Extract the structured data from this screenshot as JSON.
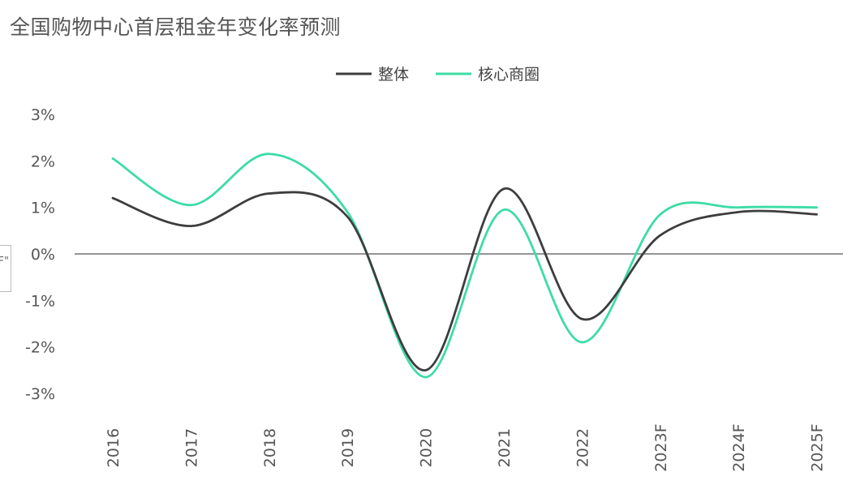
{
  "title": "全国购物中心首层租金年变化率预测",
  "side_tag": "F\"",
  "colors": {
    "overall": "#3d3d3d",
    "core": "#3ddca4",
    "axis": "#555555"
  },
  "chart_data": {
    "type": "line",
    "title": "全国购物中心首层租金年变化率预测",
    "categories": [
      "2016",
      "2017",
      "2018",
      "2019",
      "2020",
      "2021",
      "2022",
      "2023F",
      "2024F",
      "2025F"
    ],
    "yticks": [
      "3%",
      "2%",
      "1%",
      "0%",
      "-1%",
      "-2%",
      "-3%"
    ],
    "ytick_values": [
      3,
      2,
      1,
      0,
      -1,
      -2,
      -3
    ],
    "ylim": [
      -3,
      3
    ],
    "legend_position": "top-center",
    "series": [
      {
        "name": "整体",
        "color": "#3d3d3d",
        "values": [
          1.2,
          0.6,
          1.3,
          0.8,
          -2.5,
          1.4,
          -1.4,
          0.4,
          0.9,
          0.85
        ]
      },
      {
        "name": "核心商圈",
        "color": "#3ddca4",
        "values": [
          2.05,
          1.05,
          2.15,
          0.9,
          -2.65,
          0.95,
          -1.9,
          0.85,
          1.0,
          1.0
        ]
      }
    ]
  }
}
